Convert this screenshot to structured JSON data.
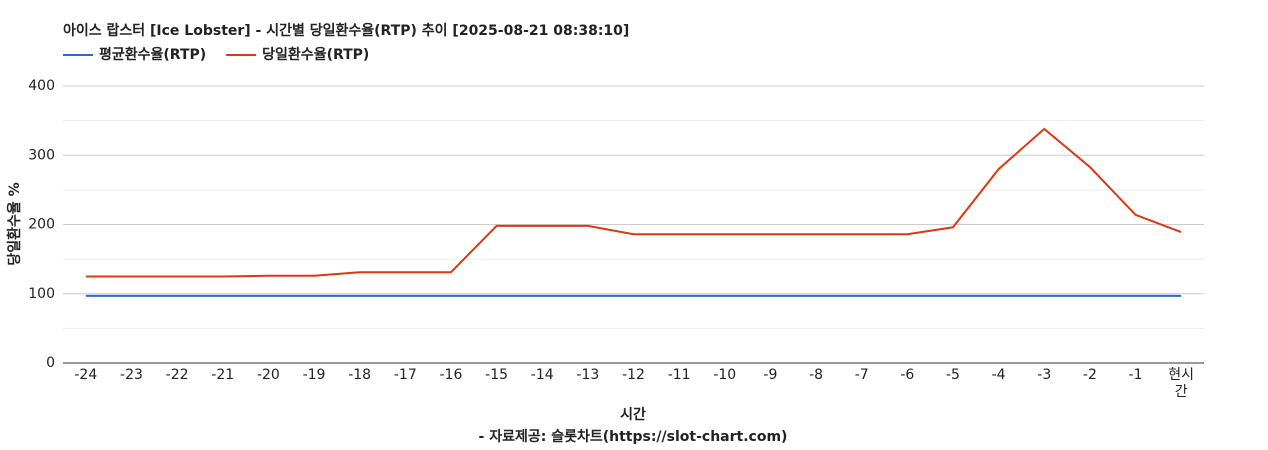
{
  "chart_data": {
    "type": "line",
    "title": "아이스 랍스터 [Ice Lobster] - 시간별 당일환수율(RTP) 추이 [2025-08-21 08:38:10]",
    "x_label": "시간",
    "y_label": "당일환수율 %",
    "source": "- 자료제공: 슬롯차트(https://slot-chart.com)",
    "categories": [
      "-24",
      "-23",
      "-22",
      "-21",
      "-20",
      "-19",
      "-18",
      "-17",
      "-16",
      "-15",
      "-14",
      "-13",
      "-12",
      "-11",
      "-10",
      "-9",
      "-8",
      "-7",
      "-6",
      "-5",
      "-4",
      "-3",
      "-2",
      "-1",
      "현시간"
    ],
    "series": [
      {
        "name": "평균환수율(RTP)",
        "color": "#3366cc",
        "values": [
          97,
          97,
          97,
          97,
          97,
          97,
          97,
          97,
          97,
          97,
          97,
          97,
          97,
          97,
          97,
          97,
          97,
          97,
          97,
          97,
          97,
          97,
          97,
          97,
          97
        ]
      },
      {
        "name": "당일환수율(RTP)",
        "color": "#dc3912",
        "values": [
          125,
          125,
          125,
          125,
          126,
          126,
          131,
          131,
          131,
          198,
          198,
          198,
          186,
          186,
          186,
          186,
          186,
          186,
          186,
          196,
          280,
          338,
          283,
          214,
          189
        ]
      }
    ],
    "ylim": [
      0,
      400
    ],
    "yticks": [
      0,
      100,
      200,
      300,
      400
    ],
    "y_minor_ticks": [
      50,
      150,
      250,
      350
    ],
    "grid": true,
    "legend": "top-left"
  }
}
